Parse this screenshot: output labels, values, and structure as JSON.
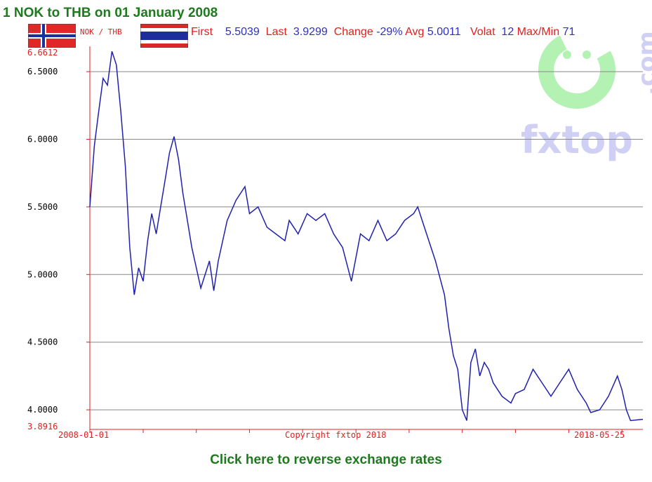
{
  "title": "1 NOK to THB on 01 January 2008",
  "pair_label": "NOK / THB",
  "stats": {
    "first_label": "First",
    "first_value": "5.5039",
    "last_label": "Last",
    "last_value": "3.9299",
    "change_label": "Change",
    "change_value": "-29%",
    "avg_label": "Avg",
    "avg_value": "5.0011",
    "volat_label": "Volat",
    "volat_value": "12",
    "maxmin_label": "Max/Min",
    "maxmin_value": "71"
  },
  "reverse_link": "Click here to reverse exchange rates",
  "watermark": "fxtop.com",
  "colors": {
    "series": "#2020b0",
    "axis": "#e02020",
    "grid": "#888888",
    "title": "#1e7a1e",
    "watermark_face": "#a6f0a6",
    "watermark_text": "#c8c8f4"
  },
  "chart_data": {
    "type": "line",
    "title": "1 NOK to THB on 01 January 2008",
    "xlabel": "",
    "ylabel": "",
    "x_tick_labels": [
      "2008-01-01",
      "Copyright fxtop 2018",
      "2018-05-25"
    ],
    "x_range": [
      "2008-01-01",
      "2018-05-25"
    ],
    "ylim": [
      3.8916,
      6.6612
    ],
    "y_ticks": [
      4.0,
      4.5,
      5.0,
      5.5,
      6.0,
      6.5
    ],
    "y_tick_labels": [
      "4.0000",
      "4.5000",
      "5.0000",
      "5.5000",
      "6.0000",
      "6.5000"
    ],
    "y_max_label": "6.6612",
    "y_min_label": "3.8916",
    "grid": true,
    "series": [
      {
        "x": [
          "2008-01-01",
          "2008-02-01",
          "2008-03-01",
          "2008-04-01",
          "2008-05-01",
          "2008-06-01",
          "2008-07-01",
          "2008-08-01",
          "2008-09-01",
          "2008-10-01",
          "2008-11-01",
          "2008-12-01",
          "2009-01-01",
          "2009-02-01",
          "2009-03-01",
          "2009-04-01",
          "2009-05-01",
          "2009-06-01",
          "2009-07-01",
          "2009-08-01",
          "2009-09-01",
          "2009-10-01",
          "2009-11-01",
          "2009-12-01",
          "2010-02-01",
          "2010-04-01",
          "2010-05-01",
          "2010-06-01",
          "2010-08-01",
          "2010-10-01",
          "2010-12-01",
          "2011-01-01",
          "2011-03-01",
          "2011-05-01",
          "2011-07-01",
          "2011-09-01",
          "2011-10-01",
          "2011-12-01",
          "2012-02-01",
          "2012-04-01",
          "2012-06-01",
          "2012-08-01",
          "2012-10-01",
          "2012-12-01",
          "2013-02-01",
          "2013-04-01",
          "2013-06-01",
          "2013-08-01",
          "2013-10-01",
          "2013-12-01",
          "2014-02-01",
          "2014-03-01",
          "2014-05-01",
          "2014-07-01",
          "2014-09-01",
          "2014-10-01",
          "2014-11-01",
          "2014-12-01",
          "2015-01-01",
          "2015-02-01",
          "2015-03-01",
          "2015-04-01",
          "2015-05-01",
          "2015-06-01",
          "2015-07-01",
          "2015-08-01",
          "2015-10-01",
          "2015-12-01",
          "2016-01-01",
          "2016-03-01",
          "2016-05-01",
          "2016-07-01",
          "2016-09-01",
          "2016-11-01",
          "2017-01-01",
          "2017-03-01",
          "2017-05-01",
          "2017-06-01",
          "2017-08-01",
          "2017-10-01",
          "2017-12-01",
          "2018-01-01",
          "2018-02-01",
          "2018-03-01",
          "2018-05-25"
        ],
        "values": [
          5.5,
          5.95,
          6.2,
          6.45,
          6.4,
          6.65,
          6.55,
          6.2,
          5.8,
          5.2,
          4.85,
          5.05,
          4.95,
          5.25,
          5.45,
          5.3,
          5.5,
          5.7,
          5.9,
          6.02,
          5.85,
          5.6,
          5.4,
          5.2,
          4.9,
          5.1,
          4.88,
          5.1,
          5.4,
          5.55,
          5.65,
          5.45,
          5.5,
          5.35,
          5.3,
          5.25,
          5.4,
          5.3,
          5.45,
          5.4,
          5.45,
          5.3,
          5.2,
          4.95,
          5.3,
          5.25,
          5.4,
          5.25,
          5.3,
          5.4,
          5.45,
          5.5,
          5.3,
          5.1,
          4.85,
          4.6,
          4.4,
          4.3,
          4.0,
          3.92,
          4.35,
          4.45,
          4.25,
          4.35,
          4.3,
          4.2,
          4.1,
          4.05,
          4.12,
          4.15,
          4.3,
          4.2,
          4.1,
          4.2,
          4.3,
          4.15,
          4.05,
          3.98,
          4.0,
          4.1,
          4.25,
          4.15,
          4.0,
          3.92,
          3.93
        ]
      }
    ]
  }
}
